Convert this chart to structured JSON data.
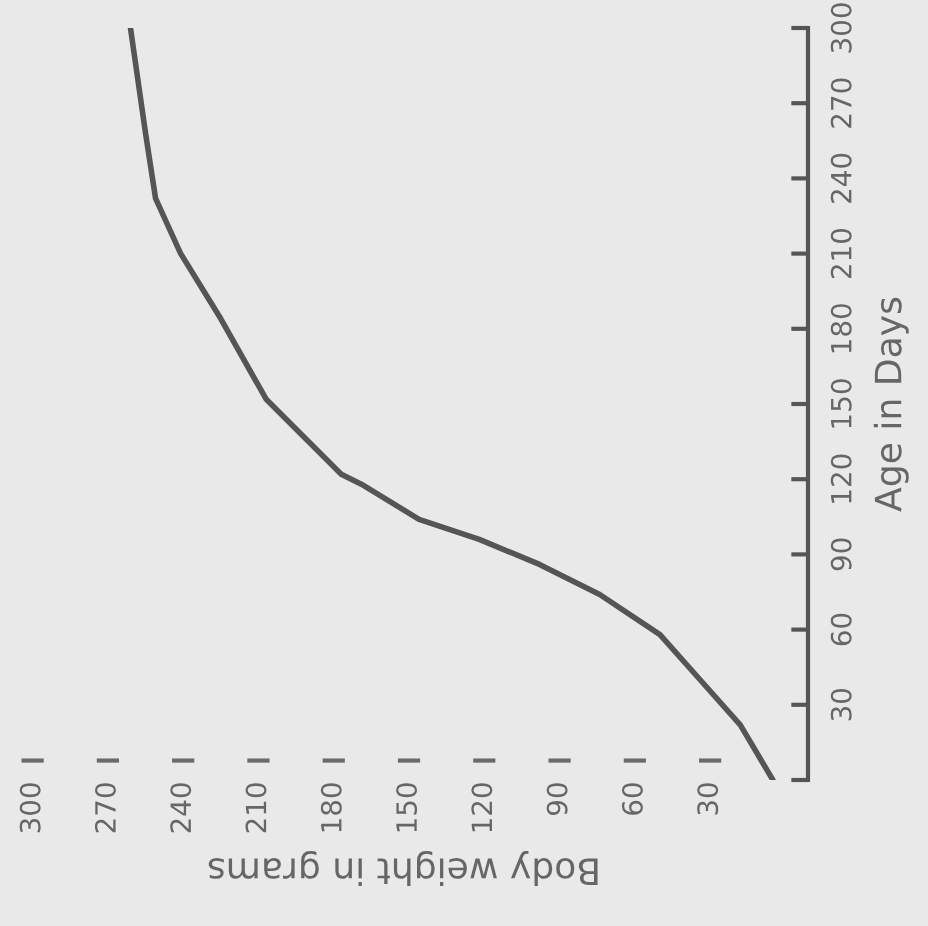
{
  "chart_data": {
    "type": "line",
    "xlabel": "Body weight in grams",
    "ylabel": "Age in Days",
    "series": [
      {
        "color": "#555555",
        "x": [
          5,
          18,
          34,
          50,
          74,
          98,
          122,
          146,
          169,
          177,
          207,
          225,
          241,
          251,
          255,
          259,
          261
        ],
        "values": [
          0,
          22,
          40,
          58,
          74,
          86,
          96,
          104,
          118,
          122,
          152,
          184,
          210,
          232,
          258,
          286,
          300
        ]
      }
    ],
    "xlim": [
      313,
      -9
    ],
    "xticks": [
      30,
      60,
      90,
      120,
      150,
      180,
      210,
      240,
      270,
      300
    ],
    "ylim": [
      0,
      300
    ],
    "yticks": [
      {
        "value": 0,
        "label": null
      },
      30,
      60,
      90,
      120,
      150,
      180,
      210,
      240,
      270,
      300
    ],
    "grid": false,
    "marker": "none",
    "line_style": "solid"
  }
}
